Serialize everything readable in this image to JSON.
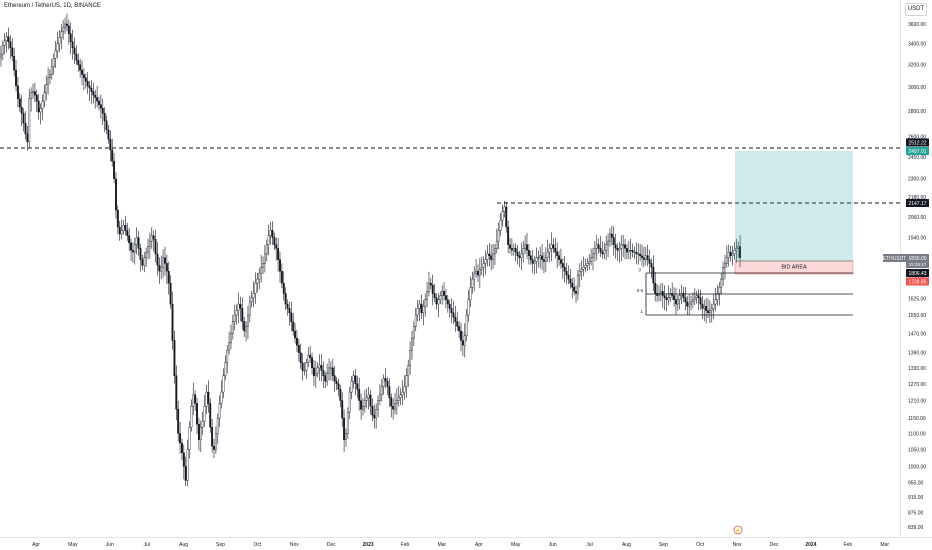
{
  "header": {
    "symbol_title": "Ethereum / TetherUS, 1D, BINANCE",
    "currency": "USDT"
  },
  "colors": {
    "candle": "#131722",
    "dashed_line": "#131722",
    "target_zone": "#26a69a",
    "bid_zone": "#ef5350",
    "price_tag": "#787b86",
    "target_tag": "#26a69a",
    "stop_tag": "#ef5350",
    "black_tag": "#131722"
  },
  "chart_data": {
    "type": "candlestick",
    "symbol": "ETHUSDT",
    "yticks": [
      "3600.00",
      "3400.00",
      "3200.00",
      "3000.00",
      "2800.00",
      "2600.00",
      "2450.00",
      "2300.00",
      "2180.00",
      "2060.00",
      "1940.00",
      "1840.00",
      "1730.00",
      "1625.00",
      "1550.00",
      "1470.00",
      "1390.00",
      "1330.00",
      "1270.00",
      "1210.00",
      "1150.00",
      "1100.00",
      "1050.00",
      "1000.00",
      "955.00",
      "915.00",
      "875.00",
      "839.00"
    ],
    "xticks": [
      "Apr",
      "May",
      "Jun",
      "Jul",
      "Aug",
      "Sep",
      "Oct",
      "Nov",
      "Dec",
      "2023",
      "Feb",
      "Mar",
      "Apr",
      "May",
      "Jun",
      "Jul",
      "Aug",
      "Sep",
      "Oct",
      "Nov",
      "Dec",
      "2024",
      "Feb",
      "Mar"
    ],
    "series_close": [
      3300,
      3380,
      3430,
      3470,
      3420,
      3360,
      3280,
      3150,
      3010,
      2900,
      2830,
      2780,
      2700,
      2620,
      2560,
      2900,
      2950,
      2960,
      2930,
      2880,
      2790,
      2820,
      2880,
      2950,
      3020,
      3080,
      3110,
      3180,
      3260,
      3330,
      3400,
      3460,
      3520,
      3560,
      3600,
      3580,
      3500,
      3420,
      3360,
      3300,
      3240,
      3200,
      3150,
      3110,
      3080,
      3050,
      3010,
      2990,
      2960,
      2930,
      2910,
      2880,
      2850,
      2820,
      2780,
      2720,
      2650,
      2580,
      2500,
      2420,
      2300,
      2100,
      2000,
      1960,
      1980,
      2010,
      1980,
      1950,
      1910,
      1870,
      1860,
      1900,
      1940,
      1880,
      1820,
      1790,
      1830,
      1860,
      1890,
      1920,
      1950,
      1930,
      1850,
      1790,
      1760,
      1780,
      1830,
      1800,
      1760,
      1700,
      1600,
      1440,
      1300,
      1180,
      1100,
      1070,
      1040,
      1000,
      960,
      1050,
      1120,
      1190,
      1230,
      1200,
      1130,
      1080,
      1120,
      1140,
      1190,
      1240,
      1200,
      1120,
      1060,
      1050,
      1100,
      1150,
      1200,
      1240,
      1300,
      1350,
      1400,
      1430,
      1470,
      1520,
      1550,
      1570,
      1600,
      1580,
      1520,
      1480,
      1500,
      1550,
      1610,
      1630,
      1650,
      1700,
      1720,
      1750,
      1780,
      1800,
      1850,
      1900,
      1950,
      1980,
      1940,
      1900,
      1880,
      1820,
      1760,
      1700,
      1650,
      1600,
      1580,
      1560,
      1520,
      1480,
      1450,
      1420,
      1390,
      1350,
      1320,
      1320,
      1350,
      1380,
      1370,
      1330,
      1300,
      1310,
      1330,
      1340,
      1320,
      1300,
      1280,
      1310,
      1330,
      1330,
      1300,
      1280,
      1270,
      1250,
      1210,
      1150,
      1080,
      1100,
      1170,
      1240,
      1280,
      1300,
      1270,
      1250,
      1210,
      1180,
      1190,
      1210,
      1220,
      1230,
      1190,
      1160,
      1150,
      1180,
      1210,
      1230,
      1260,
      1290,
      1280,
      1260,
      1220,
      1190,
      1180,
      1200,
      1210,
      1220,
      1230,
      1240,
      1260,
      1300,
      1340,
      1400,
      1450,
      1500,
      1550,
      1580,
      1600,
      1560,
      1590,
      1620,
      1660,
      1700,
      1690,
      1650,
      1630,
      1600,
      1620,
      1640,
      1660,
      1640,
      1620,
      1600,
      1580,
      1560,
      1540,
      1520,
      1500,
      1480,
      1440,
      1420,
      1460,
      1550,
      1620,
      1680,
      1720,
      1750,
      1760,
      1740,
      1770,
      1780,
      1800,
      1820,
      1850,
      1840,
      1820,
      1850,
      1880,
      1920,
      1980,
      2040,
      2090,
      2120,
      2000,
      1900,
      1880,
      1870,
      1880,
      1860,
      1840,
      1830,
      1850,
      1880,
      1900,
      1870,
      1840,
      1820,
      1800,
      1810,
      1830,
      1830,
      1840,
      1820,
      1810,
      1830,
      1860,
      1880,
      1900,
      1880,
      1860,
      1840,
      1820,
      1800,
      1780,
      1760,
      1740,
      1720,
      1700,
      1680,
      1660,
      1650,
      1740,
      1760,
      1770,
      1780,
      1790,
      1800,
      1810,
      1830,
      1850,
      1880,
      1900,
      1880,
      1860,
      1850,
      1870,
      1900,
      1920,
      1960,
      1940,
      1900,
      1880,
      1870,
      1880,
      1900,
      1900,
      1880,
      1860,
      1870,
      1870,
      1860,
      1860,
      1850,
      1850,
      1840,
      1830,
      1820,
      1840,
      1820,
      1800,
      1780,
      1700,
      1650,
      1640,
      1650,
      1660,
      1640,
      1630,
      1620,
      1630,
      1650,
      1640,
      1620,
      1600,
      1620,
      1640,
      1650,
      1630,
      1610,
      1590,
      1600,
      1610,
      1620,
      1630,
      1640,
      1630,
      1600,
      1580,
      1590,
      1570,
      1560,
      1570,
      1580,
      1600,
      1620,
      1650,
      1680,
      1720,
      1780,
      1800,
      1830,
      1860,
      1840,
      1850,
      1870,
      1880,
      1890,
      1830
    ],
    "levels": [
      {
        "name": "upper-target",
        "price": 2512.22
      },
      {
        "name": "lower-target",
        "price": 2147.17
      }
    ],
    "fib_labels": [
      "0",
      "0.5",
      "1"
    ],
    "zone_label": "BID AREA",
    "price_tags": {
      "upper_target": "2512.22",
      "target_top": "2497.01",
      "lower_target": "2147.17",
      "symbol_tag": "ETHUSDT",
      "current_price": "1830.00",
      "countdown": "15:26:47",
      "entry": "1806.43",
      "stop": "1728.85"
    },
    "scale": "log"
  }
}
